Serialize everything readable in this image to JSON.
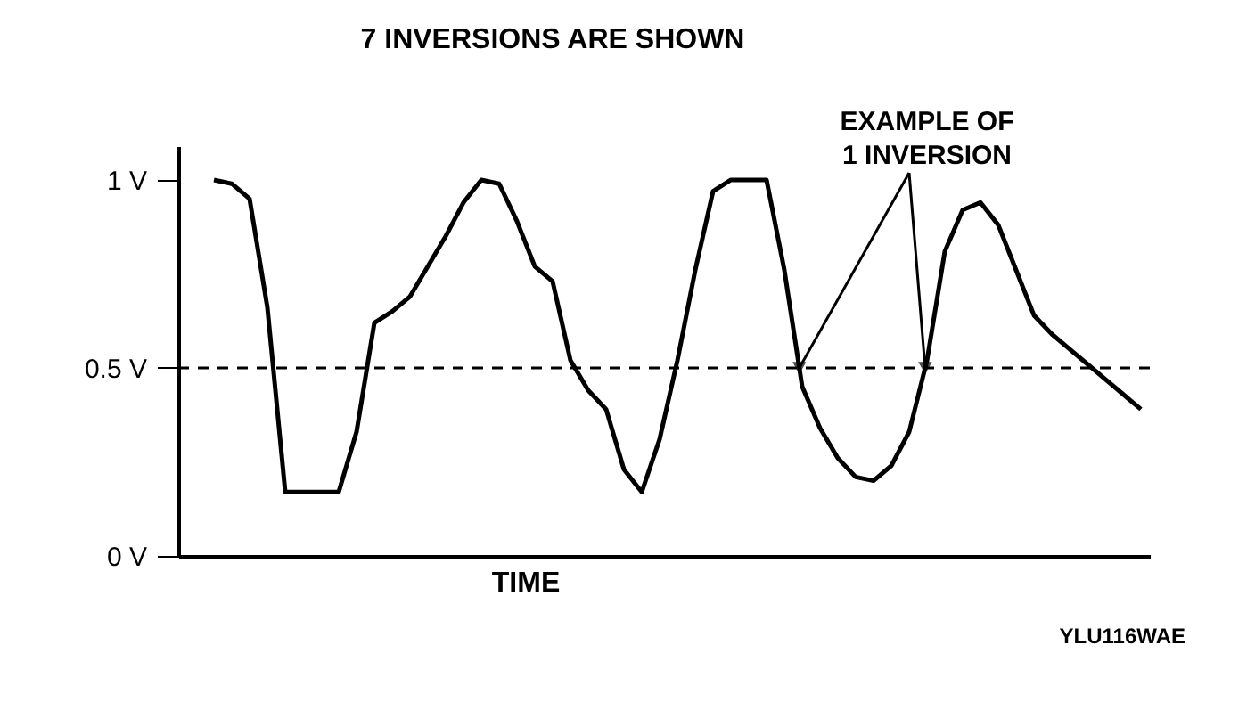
{
  "chart_data": {
    "type": "line",
    "title": "7 INVERSIONS ARE SHOWN",
    "xlabel": "TIME",
    "categories": [
      null,
      null,
      null,
      null,
      null,
      null,
      null,
      null,
      null,
      null,
      null,
      null,
      null,
      null,
      null,
      null,
      null,
      null,
      null,
      null,
      null,
      null,
      null,
      null,
      null,
      null,
      null,
      null,
      null,
      null,
      null,
      null,
      null,
      null,
      null,
      null,
      null,
      null,
      null,
      null,
      null,
      null,
      null,
      null,
      null,
      null,
      null,
      null,
      null,
      null,
      null,
      null,
      null
    ],
    "series": [
      {
        "color": "#000000",
        "values": [
          1.0,
          0.99,
          0.95,
          0.66,
          0.17,
          0.17,
          0.17,
          0.17,
          0.33,
          0.62,
          0.65,
          0.69,
          0.77,
          0.85,
          0.94,
          1.0,
          0.99,
          0.89,
          0.77,
          0.73,
          0.52,
          0.44,
          0.39,
          0.23,
          0.17,
          0.31,
          0.52,
          0.76,
          0.97,
          1.0,
          1.0,
          1.0,
          0.76,
          0.45,
          0.34,
          0.26,
          0.21,
          0.2,
          0.24,
          0.33,
          0.52,
          0.81,
          0.92,
          0.94,
          0.88,
          0.76,
          0.64,
          0.59,
          0.55,
          0.51,
          0.47,
          0.43,
          0.39
        ]
      }
    ],
    "ylim": [
      0,
      1.09
    ],
    "yticks": [
      {
        "value": 0,
        "label": "0 V"
      },
      {
        "value": 0.5,
        "label": "0.5 V"
      },
      {
        "value": 1,
        "label": "1 V"
      }
    ],
    "ref_lines": [
      {
        "axis": "y",
        "value": 0.5,
        "line_style": "dashed",
        "color": "#000000"
      }
    ],
    "annotations": [
      "EXAMPLE OF\n1 INVERSION",
      "YLU116WAE"
    ],
    "grid": false,
    "marker": "none",
    "line_style": "solid",
    "tick_labels": "y"
  }
}
